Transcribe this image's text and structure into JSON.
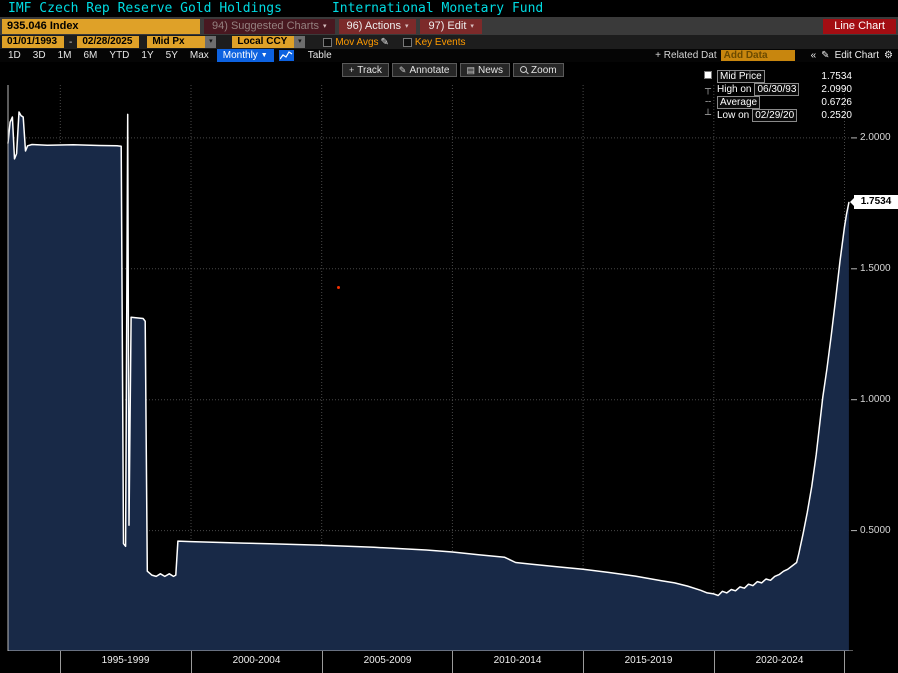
{
  "title_bar": {
    "left": "IMF Czech Rep Reserve Gold Holdings",
    "right": "International Monetary Fund"
  },
  "security_bar": {
    "ticker": "935.046 Index",
    "suggested_charts": "94) Suggested Charts",
    "actions": "96) Actions",
    "edit": "97) Edit",
    "chart_type": "Line Chart"
  },
  "settings_bar": {
    "start_date": "01/01/1993",
    "end_date": "02/28/2025",
    "range_separator": "-",
    "price_field": "Mid Px",
    "currency": "Local CCY",
    "mov_avgs_label": "Mov Avgs",
    "key_events_label": "Key Events"
  },
  "period_bar": {
    "tabs": [
      "1D",
      "3D",
      "1M",
      "6M",
      "YTD",
      "1Y",
      "5Y",
      "Max"
    ],
    "frequency": "Monthly",
    "table_label": "Table",
    "related_data_label": "+ Related Dat",
    "add_data_placeholder": "Add Data",
    "edit_chart_label": "Edit Chart"
  },
  "chart_toolbar": {
    "track": "Track",
    "annotate": "Annotate",
    "news": "News",
    "zoom": "Zoom"
  },
  "icons": {
    "dropdown_arrow": "▾",
    "chevron_down": "▼",
    "double_chevron_left": "«",
    "pencil": "✎",
    "gear": "⚙",
    "plus_target": "+",
    "news_glyph": "▤"
  },
  "legend": {
    "rows": [
      {
        "icon_glyph": "■",
        "label": "Mid Price",
        "value": "1.7534"
      },
      {
        "icon_glyph": "┬",
        "prefix": "High on",
        "date": "06/30/93",
        "value": "2.0990"
      },
      {
        "icon_glyph": "╌",
        "label": "Average",
        "value": "0.6726"
      },
      {
        "icon_glyph": "┴",
        "prefix": "Low on",
        "date": "02/29/20",
        "value": "0.2520"
      }
    ]
  },
  "last_price_badge": "1.7534",
  "chart_data": {
    "type": "area",
    "title": "IMF Czech Rep Reserve Gold Holdings (935.046 Index), Mid Px, Monthly, Local CCY, 01/01/1993 - 02/28/2025",
    "line_color": "#ffffff",
    "fill_color": "#182947",
    "ylim": [
      0.04,
      2.29
    ],
    "yticks": [
      0.5,
      1.0,
      1.5,
      2.0
    ],
    "ytick_labels": [
      "0.5000",
      "1.0000",
      "1.5000",
      "2.0000"
    ],
    "x_range": [
      1993.0,
      2025.25
    ],
    "x_gridlines": [
      1995,
      2000,
      2005,
      2010,
      2015,
      2020,
      2025
    ],
    "x_labels": [
      "1995-1999",
      "2000-2004",
      "2005-2009",
      "2010-2014",
      "2015-2019",
      "2020-2024"
    ],
    "last_value": 1.7534,
    "high": {
      "date": "06/30/93",
      "value": 2.099
    },
    "low": {
      "date": "02/29/20",
      "value": 0.252
    },
    "average": 0.6726,
    "points": [
      [
        1993.0,
        1.98
      ],
      [
        1993.08,
        2.06
      ],
      [
        1993.17,
        2.08
      ],
      [
        1993.25,
        1.92
      ],
      [
        1993.33,
        1.94
      ],
      [
        1993.42,
        2.099
      ],
      [
        1993.5,
        2.085
      ],
      [
        1993.58,
        2.08
      ],
      [
        1993.67,
        1.95
      ],
      [
        1993.75,
        1.97
      ],
      [
        1993.92,
        1.975
      ],
      [
        1994.5,
        1.972
      ],
      [
        1995.5,
        1.974
      ],
      [
        1996.5,
        1.971
      ],
      [
        1997.17,
        1.97
      ],
      [
        1997.33,
        1.968
      ],
      [
        1997.42,
        0.45
      ],
      [
        1997.5,
        0.44
      ],
      [
        1997.58,
        2.09
      ],
      [
        1997.63,
        0.52
      ],
      [
        1997.71,
        1.315
      ],
      [
        1998.17,
        1.31
      ],
      [
        1998.25,
        1.3
      ],
      [
        1998.33,
        0.345
      ],
      [
        1998.5,
        0.33
      ],
      [
        1998.67,
        0.325
      ],
      [
        1998.83,
        0.335
      ],
      [
        1999.0,
        0.325
      ],
      [
        1999.17,
        0.335
      ],
      [
        1999.33,
        0.325
      ],
      [
        1999.42,
        0.33
      ],
      [
        1999.5,
        0.46
      ],
      [
        2000.0,
        0.458
      ],
      [
        2001.0,
        0.455
      ],
      [
        2002.0,
        0.452
      ],
      [
        2003.0,
        0.45
      ],
      [
        2004.0,
        0.447
      ],
      [
        2005.0,
        0.444
      ],
      [
        2006.0,
        0.44
      ],
      [
        2007.0,
        0.436
      ],
      [
        2008.0,
        0.431
      ],
      [
        2009.0,
        0.426
      ],
      [
        2010.0,
        0.418
      ],
      [
        2011.0,
        0.408
      ],
      [
        2012.0,
        0.398
      ],
      [
        2012.42,
        0.378
      ],
      [
        2013.0,
        0.372
      ],
      [
        2014.0,
        0.362
      ],
      [
        2015.0,
        0.352
      ],
      [
        2016.0,
        0.34
      ],
      [
        2017.0,
        0.326
      ],
      [
        2018.0,
        0.308
      ],
      [
        2018.5,
        0.3
      ],
      [
        2019.0,
        0.288
      ],
      [
        2019.5,
        0.272
      ],
      [
        2019.75,
        0.262
      ],
      [
        2020.0,
        0.258
      ],
      [
        2020.17,
        0.252
      ],
      [
        2020.33,
        0.268
      ],
      [
        2020.5,
        0.262
      ],
      [
        2020.67,
        0.275
      ],
      [
        2020.83,
        0.27
      ],
      [
        2021.0,
        0.285
      ],
      [
        2021.17,
        0.28
      ],
      [
        2021.33,
        0.295
      ],
      [
        2021.5,
        0.29
      ],
      [
        2021.67,
        0.305
      ],
      [
        2021.83,
        0.3
      ],
      [
        2022.0,
        0.315
      ],
      [
        2022.17,
        0.31
      ],
      [
        2022.33,
        0.325
      ],
      [
        2022.5,
        0.332
      ],
      [
        2022.67,
        0.345
      ],
      [
        2022.83,
        0.352
      ],
      [
        2023.0,
        0.365
      ],
      [
        2023.17,
        0.378
      ],
      [
        2023.25,
        0.41
      ],
      [
        2023.42,
        0.49
      ],
      [
        2023.58,
        0.57
      ],
      [
        2023.75,
        0.67
      ],
      [
        2023.92,
        0.79
      ],
      [
        2024.08,
        0.93
      ],
      [
        2024.17,
        1.01
      ],
      [
        2024.33,
        1.12
      ],
      [
        2024.5,
        1.25
      ],
      [
        2024.67,
        1.39
      ],
      [
        2024.83,
        1.53
      ],
      [
        2025.0,
        1.66
      ],
      [
        2025.08,
        1.71
      ],
      [
        2025.17,
        1.7534
      ]
    ]
  }
}
